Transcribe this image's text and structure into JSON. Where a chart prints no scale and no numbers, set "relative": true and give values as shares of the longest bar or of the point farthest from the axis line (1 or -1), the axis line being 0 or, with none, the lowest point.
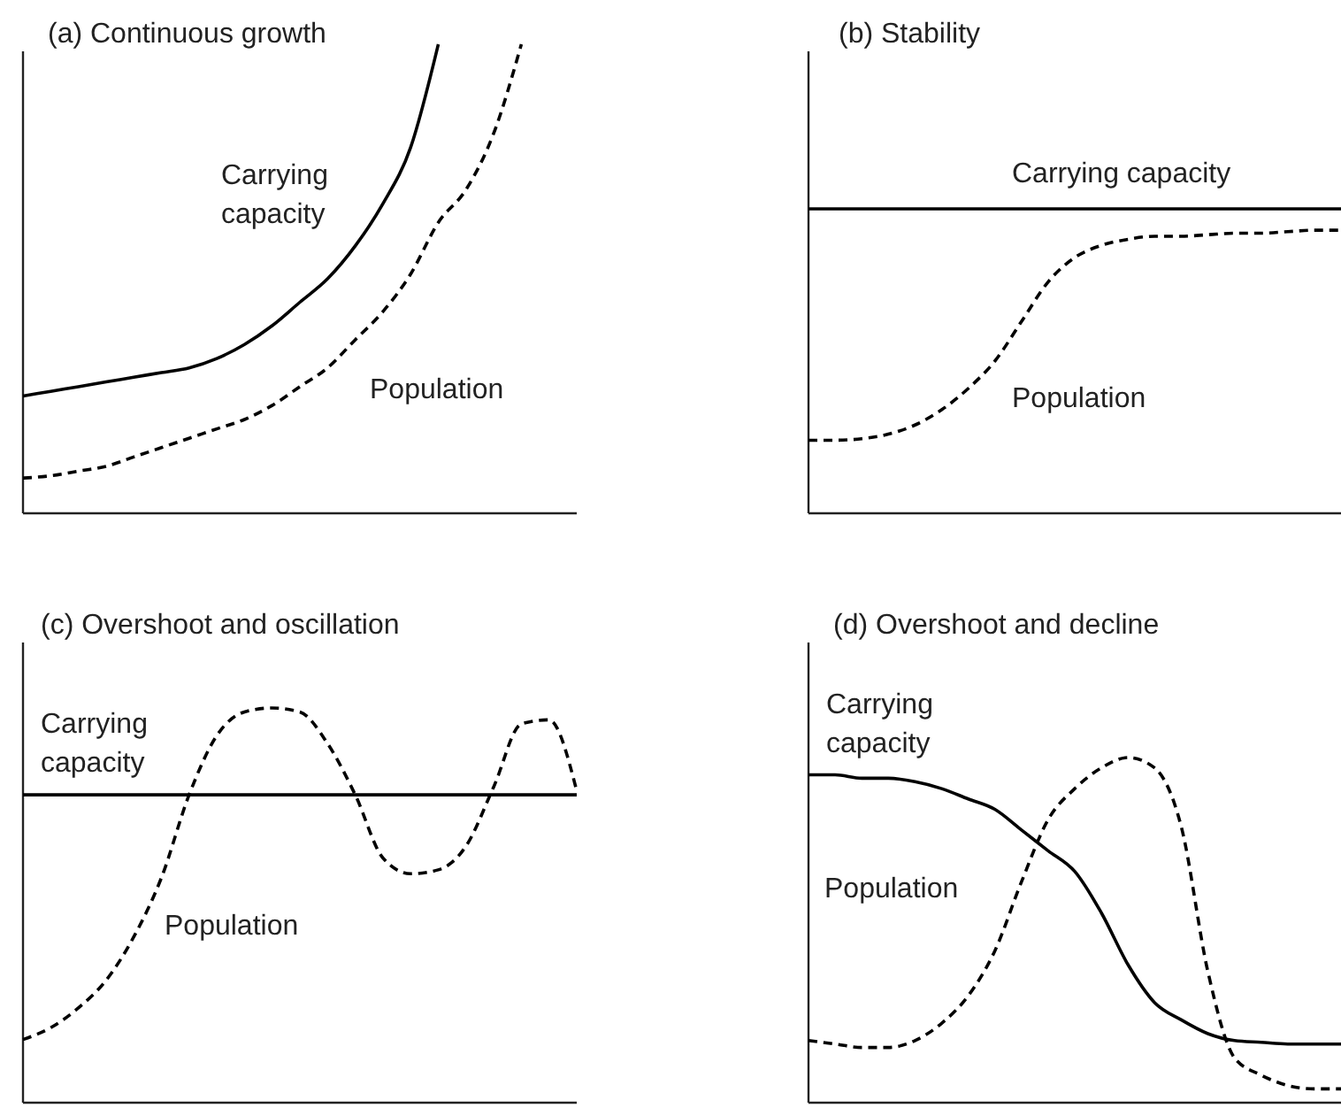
{
  "chart_data": [
    {
      "type": "line",
      "title": "(a) Continuous growth",
      "relative": true,
      "categories": [
        null,
        null,
        null,
        null,
        null,
        null,
        null,
        null,
        null,
        null,
        null,
        null,
        null,
        null,
        null,
        null,
        null,
        null,
        null,
        null,
        null
      ],
      "series": [
        {
          "name": "Carrying capacity",
          "color": "#000000",
          "line_style": "solid",
          "values": [
            0.25,
            0.26,
            0.27,
            0.28,
            0.29,
            0.3,
            0.31,
            0.33,
            0.36,
            0.4,
            0.45,
            0.5,
            0.57,
            0.66,
            0.78,
            1.0,
            null,
            null,
            null,
            null,
            null
          ]
        },
        {
          "name": "Population",
          "color": "#000000",
          "line_style": "dashed",
          "values": [
            0.075,
            0.08,
            0.09,
            0.1,
            0.12,
            0.14,
            0.16,
            0.18,
            0.2,
            0.23,
            0.27,
            0.31,
            0.37,
            0.43,
            0.51,
            0.62,
            0.69,
            0.81,
            1.0,
            null,
            null
          ]
        }
      ]
    },
    {
      "type": "line",
      "title": "(b) Stability",
      "relative": true,
      "categories": [
        null,
        null,
        null,
        null,
        null,
        null,
        null,
        null,
        null,
        null,
        null,
        null,
        null,
        null,
        null,
        null,
        null,
        null,
        null,
        null,
        null
      ],
      "series": [
        {
          "name": "Carrying capacity",
          "color": "#000000",
          "line_style": "solid",
          "values": [
            1,
            1,
            1,
            1,
            1,
            1,
            1,
            1,
            1,
            1,
            1,
            1,
            1,
            1,
            1,
            1,
            1,
            1,
            1,
            1,
            1
          ]
        },
        {
          "name": "Population",
          "color": "#000000",
          "line_style": "dashed",
          "values": [
            0.24,
            0.24,
            0.245,
            0.26,
            0.29,
            0.34,
            0.41,
            0.5,
            0.63,
            0.76,
            0.84,
            0.88,
            0.9,
            0.91,
            0.91,
            0.915,
            0.92,
            0.92,
            0.925,
            0.93,
            0.93
          ]
        }
      ]
    },
    {
      "type": "line",
      "title": "(c) Overshoot and oscillation",
      "relative": true,
      "categories": [
        null,
        null,
        null,
        null,
        null,
        null,
        null,
        null,
        null,
        null,
        null,
        null,
        null,
        null,
        null,
        null,
        null,
        null,
        null,
        null,
        null
      ],
      "series": [
        {
          "name": "Carrying capacity",
          "color": "#000000",
          "line_style": "solid",
          "values": [
            0.78,
            0.78,
            0.78,
            0.78,
            0.78,
            0.78,
            0.78,
            0.78,
            0.78,
            0.78,
            0.78,
            0.78,
            0.78,
            0.78,
            0.78,
            0.78,
            0.78,
            0.78,
            0.78,
            0.78,
            0.78
          ]
        },
        {
          "name": "Population",
          "color": "#000000",
          "line_style": "dashed",
          "values": [
            0.16,
            0.19,
            0.24,
            0.31,
            0.42,
            0.57,
            0.78,
            0.93,
            0.99,
            1.0,
            0.99,
            0.91,
            0.78,
            0.62,
            0.58,
            0.59,
            0.65,
            0.8,
            0.96,
            0.97,
            0.79
          ]
        }
      ]
    },
    {
      "type": "line",
      "title": "(d) Overshoot and decline",
      "relative": true,
      "categories": [
        null,
        null,
        null,
        null,
        null,
        null,
        null,
        null,
        null,
        null,
        null,
        null,
        null,
        null,
        null,
        null,
        null,
        null,
        null,
        null,
        null
      ],
      "series": [
        {
          "name": "Carrying capacity",
          "color": "#000000",
          "line_style": "solid",
          "values": [
            0.95,
            0.95,
            0.94,
            0.94,
            0.93,
            0.91,
            0.88,
            0.85,
            0.79,
            0.73,
            0.67,
            0.55,
            0.4,
            0.29,
            0.24,
            0.2,
            0.18,
            0.175,
            0.17,
            0.17,
            0.17
          ]
        },
        {
          "name": "Population",
          "color": "#000000",
          "line_style": "dashed",
          "values": [
            0.18,
            0.17,
            0.16,
            0.16,
            0.18,
            0.23,
            0.31,
            0.44,
            0.64,
            0.82,
            0.91,
            0.97,
            1.0,
            0.97,
            0.8,
            0.38,
            0.13,
            0.08,
            0.05,
            0.04,
            0.04
          ]
        }
      ]
    }
  ]
}
